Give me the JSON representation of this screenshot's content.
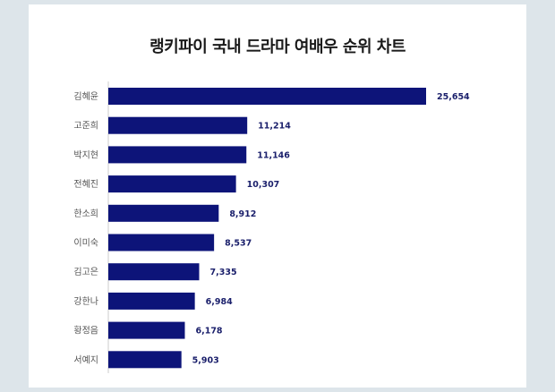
{
  "chart_data": {
    "type": "bar",
    "orientation": "horizontal",
    "title": "랭키파이 국내 드라마 여배우 순위 차트",
    "categories": [
      "김혜윤",
      "고준희",
      "박지현",
      "전혜진",
      "한소희",
      "이미숙",
      "김고은",
      "강한나",
      "황정음",
      "서예지"
    ],
    "values": [
      25654,
      11214,
      11146,
      10307,
      8912,
      8537,
      7335,
      6984,
      6178,
      5903
    ],
    "value_labels": [
      "25,654",
      "11,214",
      "11,146",
      "10,307",
      "8,912",
      "8,537",
      "7,335",
      "6,984",
      "6,178",
      "5,903"
    ],
    "xlabel": "",
    "ylabel": "",
    "xlim": [
      0,
      25654
    ],
    "grid": false,
    "legend": "none",
    "colors": {
      "bar": "#0d1479",
      "label": "#1a1f6b",
      "background": "#dde5ea"
    }
  }
}
